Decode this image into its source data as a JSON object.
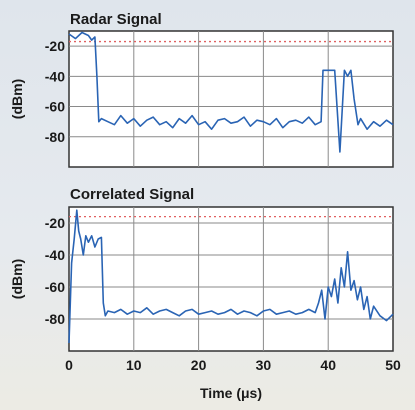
{
  "colors": {
    "line": "#2a64b4",
    "grid": "#8a8a8a",
    "plot_bg": "#ffffff",
    "reference": "#e06060",
    "frame": "#333333"
  },
  "chart_data": [
    {
      "type": "line",
      "title": "Radar Signal",
      "ylabel": "(dBm)",
      "xlabel": "",
      "xlim": [
        0,
        50
      ],
      "ylim": [
        -100,
        -10
      ],
      "x_ticks": [
        0,
        10,
        20,
        30,
        40,
        50
      ],
      "x_tick_labels_shown": false,
      "y_ticks": [
        -20,
        -40,
        -60,
        -80
      ],
      "y_tick_labels": [
        "-20",
        "-40",
        "-60",
        "-80"
      ],
      "grid": true,
      "reference_line": {
        "y": -17,
        "style": "dotted"
      },
      "series": [
        {
          "x": [
            0,
            1,
            2,
            3,
            3.5,
            4,
            4.3,
            4.6,
            5,
            6,
            7,
            8,
            9,
            10,
            11,
            12,
            13,
            14,
            15,
            16,
            17,
            18,
            19,
            20,
            21,
            22,
            23,
            24,
            25,
            26,
            27,
            28,
            29,
            30,
            31,
            32,
            33,
            34,
            35,
            36,
            37,
            38,
            38.9,
            39.2,
            40,
            41,
            41.8,
            42.5,
            43,
            43.5,
            44,
            44.6,
            45,
            46,
            47,
            48,
            49,
            50
          ],
          "values": [
            -12,
            -15,
            -11,
            -13,
            -16,
            -14,
            -40,
            -70,
            -68,
            -70,
            -72,
            -66,
            -71,
            -68,
            -73,
            -69,
            -67,
            -72,
            -70,
            -74,
            -68,
            -71,
            -66,
            -72,
            -70,
            -75,
            -69,
            -68,
            -71,
            -70,
            -67,
            -73,
            -69,
            -70,
            -72,
            -68,
            -74,
            -70,
            -69,
            -71,
            -67,
            -72,
            -70,
            -36,
            -36,
            -36,
            -90,
            -36,
            -40,
            -36,
            -55,
            -72,
            -68,
            -75,
            -70,
            -73,
            -69,
            -72
          ]
        }
      ]
    },
    {
      "type": "line",
      "title": "Correlated Signal",
      "ylabel": "(dBm)",
      "xlabel": "Time (μs)",
      "xlim": [
        0,
        50
      ],
      "ylim": [
        -100,
        -10
      ],
      "x_ticks": [
        0,
        10,
        20,
        30,
        40,
        50
      ],
      "x_tick_labels": [
        "0",
        "10",
        "20",
        "30",
        "40",
        "50"
      ],
      "y_ticks": [
        -20,
        -40,
        -60,
        -80
      ],
      "y_tick_labels": [
        "-20",
        "-40",
        "-60",
        "-80"
      ],
      "grid": true,
      "reference_line": {
        "y": -16,
        "style": "dotted"
      },
      "series": [
        {
          "x": [
            0,
            0.4,
            0.8,
            1.2,
            1.5,
            1.8,
            2.2,
            2.6,
            3,
            3.5,
            4,
            4.5,
            5,
            5.3,
            5.6,
            6,
            7,
            8,
            9,
            10,
            11,
            12,
            13,
            14,
            15,
            16,
            17,
            18,
            19,
            20,
            21,
            22,
            23,
            24,
            25,
            26,
            27,
            28,
            29,
            30,
            31,
            32,
            33,
            34,
            35,
            36,
            37,
            38,
            38.5,
            39,
            39.5,
            40,
            40.5,
            41,
            41.5,
            42,
            42.5,
            43,
            43.5,
            44,
            44.5,
            45,
            45.5,
            46,
            46.5,
            47,
            48,
            49,
            50
          ],
          "values": [
            -95,
            -45,
            -30,
            -12,
            -25,
            -30,
            -40,
            -28,
            -32,
            -28,
            -35,
            -30,
            -29,
            -70,
            -78,
            -75,
            -76,
            -74,
            -77,
            -75,
            -76,
            -73,
            -77,
            -75,
            -74,
            -76,
            -78,
            -75,
            -74,
            -77,
            -76,
            -75,
            -77,
            -76,
            -74,
            -77,
            -75,
            -76,
            -78,
            -75,
            -74,
            -77,
            -76,
            -75,
            -77,
            -76,
            -74,
            -76,
            -70,
            -62,
            -80,
            -60,
            -66,
            -55,
            -70,
            -48,
            -60,
            -38,
            -62,
            -56,
            -68,
            -60,
            -74,
            -66,
            -80,
            -72,
            -78,
            -81,
            -77
          ]
        }
      ]
    }
  ]
}
